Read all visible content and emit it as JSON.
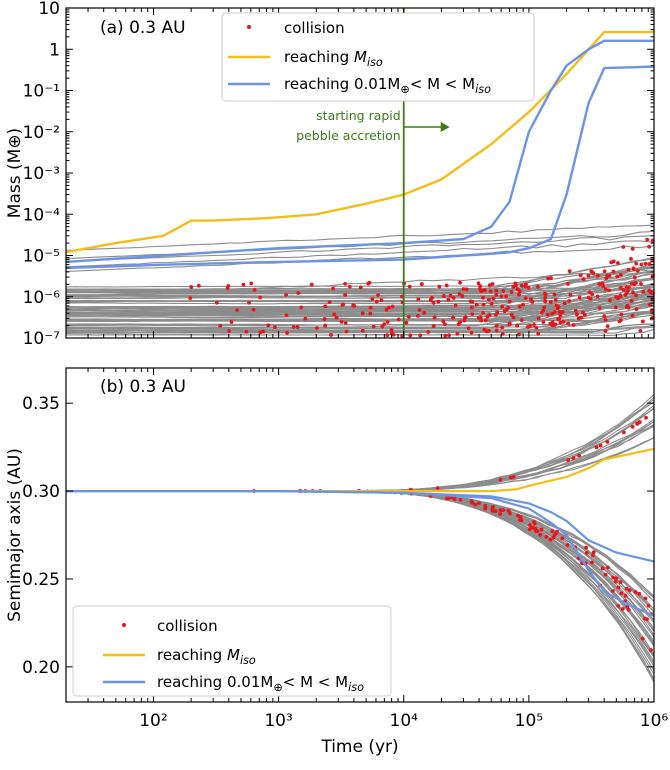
{
  "chart_data": [
    {
      "type": "line",
      "panel_label": "(a) 0.3 AU",
      "ylabel": "Mass (M⊕)",
      "xscale": "log",
      "yscale": "log",
      "xlim": [
        20,
        1000000
      ],
      "ylim": [
        1e-07,
        10
      ],
      "ytick_labels": [
        "10⁻⁷",
        "10⁻⁶",
        "10⁻⁵",
        "10⁻⁴",
        "10⁻³",
        "10⁻²",
        "10⁻¹",
        "1",
        "10"
      ],
      "ytick_values": [
        1e-07,
        1e-06,
        1e-05,
        0.0001,
        0.001,
        0.01,
        0.1,
        1,
        10
      ],
      "annotation": {
        "lines": [
          "starting rapid",
          "pebble accretion"
        ],
        "x": 10000,
        "color": "#3a7d16"
      },
      "legend": {
        "position": "top-center",
        "entries": [
          {
            "label": "collision",
            "kind": "marker",
            "color": "#e8161b"
          },
          {
            "label_parts": [
              "reaching ",
              "M",
              "iso",
              ""
            ],
            "kind": "line",
            "color": "#f5bd18"
          },
          {
            "label_parts": [
              "reaching 0.01M",
              "⊕",
              "< M < M",
              "iso"
            ],
            "kind": "line",
            "color": "#6b93e6"
          }
        ]
      },
      "series": [
        {
          "role": "reaching-miso",
          "color": "#f5bd18",
          "x": [
            20,
            50,
            120,
            200,
            300,
            800,
            2000,
            5000,
            10000,
            20000,
            50000,
            100000,
            200000,
            400000,
            1000000
          ],
          "y": [
            1.2e-05,
            2e-05,
            3e-05,
            7e-05,
            7e-05,
            8e-05,
            0.0001,
            0.00018,
            0.0003,
            0.0007,
            0.005,
            0.03,
            0.25,
            2.6,
            2.6
          ]
        },
        {
          "role": "reaching-mid-1",
          "color": "#6b93e6",
          "x": [
            20,
            120,
            1000,
            10000,
            30000,
            50000,
            70000,
            100000,
            150000,
            200000,
            300000,
            400000,
            1000000
          ],
          "y": [
            7e-06,
            1e-05,
            1.5e-05,
            2e-05,
            2.5e-05,
            5e-05,
            0.0002,
            0.01,
            0.1,
            0.4,
            1.0,
            1.6,
            1.6
          ]
        },
        {
          "role": "reaching-mid-2",
          "color": "#6b93e6",
          "x": [
            20,
            120,
            1000,
            10000,
            30000,
            50000,
            70000,
            100000,
            150000,
            200000,
            250000,
            300000,
            400000,
            1000000
          ],
          "y": [
            5e-06,
            6e-06,
            7e-06,
            8e-06,
            1e-05,
            1.1e-05,
            1.2e-05,
            1.5e-05,
            2.5e-05,
            0.0003,
            0.005,
            0.05,
            0.35,
            0.38
          ]
        }
      ]
    },
    {
      "type": "line",
      "panel_label": "(b) 0.3 AU",
      "ylabel": "Semimajor axis (AU)",
      "xlabel": "Time (yr)",
      "xscale": "log",
      "xlim": [
        20,
        1000000
      ],
      "ylim": [
        0.18,
        0.37
      ],
      "yticks": [
        0.2,
        0.25,
        0.3,
        0.35
      ],
      "ytick_labels": [
        "0.20",
        "0.25",
        "0.30",
        "0.35"
      ],
      "xticks": [
        100,
        1000,
        10000,
        100000,
        1000000
      ],
      "xtick_labels": [
        "10²",
        "10³",
        "10⁴",
        "10⁵",
        "10⁶"
      ],
      "legend": {
        "position": "bottom-left",
        "entries": [
          {
            "label": "collision",
            "kind": "marker",
            "color": "#e8161b"
          },
          {
            "label_parts": [
              "reaching ",
              "M",
              "iso",
              ""
            ],
            "kind": "line",
            "color": "#f5bd18"
          },
          {
            "label_parts": [
              "reaching 0.01M",
              "⊕",
              "< M < M",
              "iso"
            ],
            "kind": "line",
            "color": "#6b93e6"
          }
        ]
      },
      "series": [
        {
          "role": "reaching-miso",
          "color": "#f5bd18",
          "x": [
            20,
            1000,
            10000,
            50000,
            80000,
            100000,
            200000,
            300000,
            400000,
            1000000
          ],
          "y": [
            0.3,
            0.3,
            0.3,
            0.3,
            0.301,
            0.303,
            0.308,
            0.313,
            0.318,
            0.324
          ]
        },
        {
          "role": "reaching-mid-1",
          "color": "#6b93e6",
          "x": [
            20,
            1000,
            10000,
            50000,
            100000,
            150000,
            200000,
            300000,
            500000,
            1000000
          ],
          "y": [
            0.3,
            0.3,
            0.299,
            0.297,
            0.293,
            0.288,
            0.283,
            0.272,
            0.265,
            0.26
          ]
        },
        {
          "role": "reaching-mid-2",
          "color": "#6b93e6",
          "x": [
            20,
            1000,
            10000,
            50000,
            100000,
            150000,
            200000,
            300000,
            400000,
            600000,
            1000000
          ],
          "y": [
            0.3,
            0.3,
            0.299,
            0.296,
            0.29,
            0.282,
            0.275,
            0.255,
            0.243,
            0.236,
            0.229
          ]
        }
      ]
    }
  ]
}
